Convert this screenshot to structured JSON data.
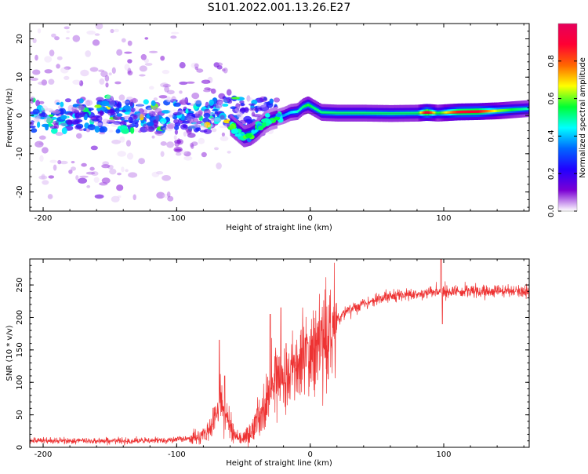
{
  "title": "S101.2022.001.13.26.E27",
  "chart_data": [
    {
      "type": "heatmap",
      "xlabel": "Height of straight line (km)",
      "ylabel": "Frequency (Hz)",
      "xlim": [
        -210,
        164
      ],
      "ylim": [
        -25,
        24
      ],
      "xticks": [
        -200,
        -100,
        0,
        100
      ],
      "yticks": [
        -20,
        -10,
        0,
        10,
        20
      ],
      "colorbar": {
        "label": "Normalized spectral amplitude",
        "range": [
          0,
          1
        ],
        "ticks": [
          0.0,
          0.2,
          0.4,
          0.6,
          0.8
        ],
        "tick_labels": [
          "0.0",
          "0.2",
          "0.4",
          "0.6",
          "0.8"
        ],
        "colors": [
          "#ffffff",
          "#7b00d4",
          "#2200ff",
          "#0066ff",
          "#00ffff",
          "#00ff33",
          "#ffff00",
          "#ff6600",
          "#ff0033",
          "#e6005c"
        ]
      },
      "ridge": [
        {
          "x": -60,
          "y": -2.5,
          "a": 0.45
        },
        {
          "x": -55,
          "y": -4.0,
          "a": 0.45
        },
        {
          "x": -50,
          "y": -5.5,
          "a": 0.45
        },
        {
          "x": -45,
          "y": -5.0,
          "a": 0.5
        },
        {
          "x": -40,
          "y": -3.8,
          "a": 0.4
        },
        {
          "x": -35,
          "y": -2.0,
          "a": 0.35
        },
        {
          "x": -30,
          "y": -1.0,
          "a": 0.3
        },
        {
          "x": -20,
          "y": 0.0,
          "a": 0.35
        },
        {
          "x": -15,
          "y": 0.8,
          "a": 0.4
        },
        {
          "x": -10,
          "y": 1.0,
          "a": 0.45
        },
        {
          "x": -6,
          "y": 2.2,
          "a": 0.5
        },
        {
          "x": -2,
          "y": 2.8,
          "a": 0.55
        },
        {
          "x": 2,
          "y": 2.0,
          "a": 0.5
        },
        {
          "x": 8,
          "y": 0.8,
          "a": 0.5
        },
        {
          "x": 20,
          "y": 0.6,
          "a": 0.5
        },
        {
          "x": 40,
          "y": 0.6,
          "a": 0.5
        },
        {
          "x": 60,
          "y": 0.5,
          "a": 0.5
        },
        {
          "x": 80,
          "y": 0.6,
          "a": 0.5
        },
        {
          "x": 87,
          "y": 0.8,
          "a": 0.95
        },
        {
          "x": 95,
          "y": 0.6,
          "a": 0.5
        },
        {
          "x": 110,
          "y": 0.9,
          "a": 0.85
        },
        {
          "x": 125,
          "y": 1.0,
          "a": 0.88
        },
        {
          "x": 140,
          "y": 1.2,
          "a": 0.6
        },
        {
          "x": 164,
          "y": 1.8,
          "a": 0.45
        }
      ],
      "noise_bands": [
        {
          "x0": -210,
          "x1": -60,
          "y_spread": 4,
          "a": 0.25
        },
        {
          "x0": -210,
          "x1": -100,
          "y_spread": 24,
          "a": 0.06
        },
        {
          "x0": -100,
          "x1": -60,
          "y_spread": 14,
          "a": 0.07
        },
        {
          "x0": -60,
          "x1": -25,
          "y_spread": 5,
          "a": 0.2
        }
      ]
    },
    {
      "type": "line",
      "xlabel": "Height of straight line (km)",
      "ylabel": "SNR (10 * v/v)",
      "xlim": [
        -210,
        164
      ],
      "ylim": [
        0,
        290
      ],
      "xticks": [
        -200,
        -100,
        0,
        100
      ],
      "yticks": [
        0,
        50,
        100,
        150,
        200,
        250
      ],
      "color": "#ee3333",
      "series": [
        {
          "x": [
            -210,
            -180,
            -150,
            -120,
            -100,
            -90,
            -82,
            -76,
            -72,
            -70,
            -68,
            -66,
            -64,
            -60,
            -56,
            -52,
            -48,
            -44,
            -40,
            -36,
            -32,
            -28,
            -24,
            -20,
            -16,
            -12,
            -8,
            -4,
            0,
            5,
            10,
            15,
            20,
            30,
            40,
            50,
            60,
            70,
            80,
            90,
            98,
            100,
            110,
            120,
            130,
            140,
            150,
            164
          ],
          "values": [
            10,
            10,
            10,
            10,
            12,
            14,
            16,
            25,
            42,
            55,
            75,
            65,
            50,
            35,
            18,
            14,
            16,
            22,
            40,
            55,
            70,
            95,
            110,
            110,
            115,
            120,
            130,
            135,
            145,
            155,
            165,
            180,
            195,
            212,
            222,
            228,
            232,
            235,
            236,
            238,
            240,
            240,
            240,
            240,
            240,
            240,
            240,
            240
          ]
        }
      ],
      "spikes": [
        {
          "x": -68,
          "y": 165
        },
        {
          "x": -64,
          "y": 110
        },
        {
          "x": -30,
          "y": 205
        },
        {
          "x": -22,
          "y": 215
        },
        {
          "x": -18,
          "y": 160
        },
        {
          "x": 5,
          "y": 165
        },
        {
          "x": 8,
          "y": 195
        },
        {
          "x": 98,
          "y": 290
        },
        {
          "x": 99,
          "y": 190
        }
      ]
    }
  ]
}
